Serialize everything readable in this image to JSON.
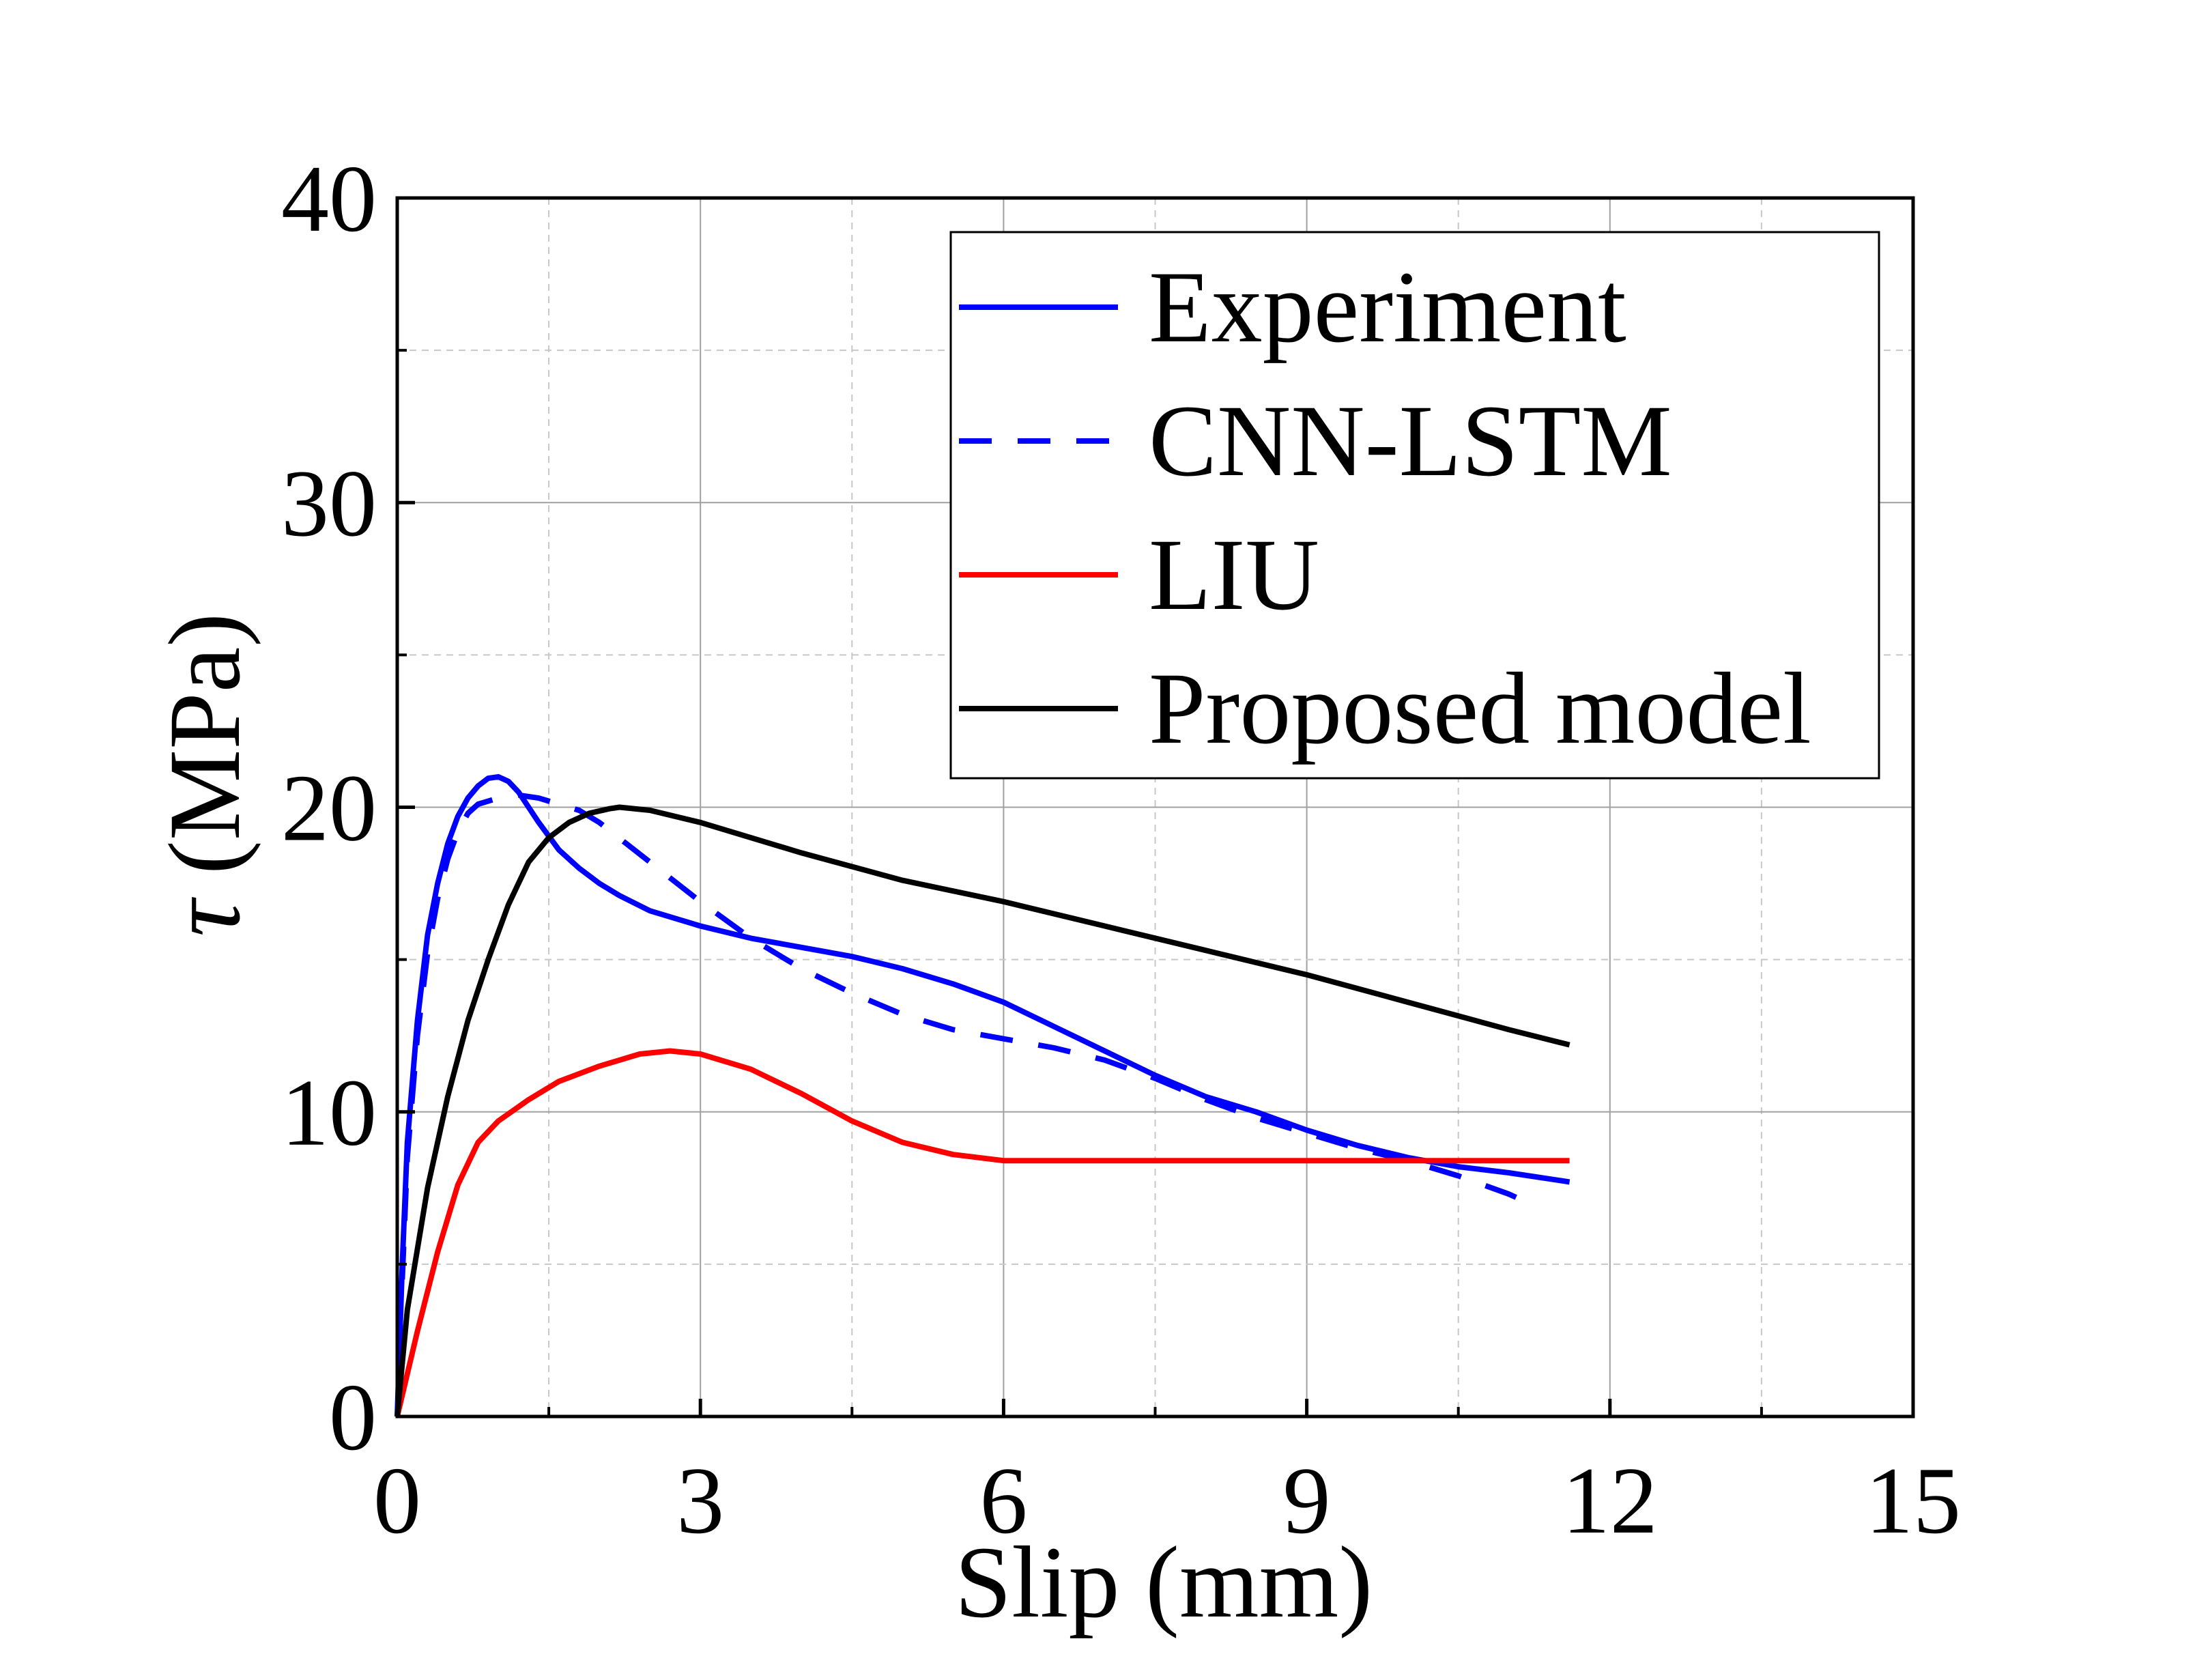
{
  "chart_data": {
    "type": "line",
    "xlabel": "Slip (mm)",
    "ylabel_symbol": "τ",
    "ylabel_unit": " (MPa)",
    "xlim": [
      0,
      15
    ],
    "ylim": [
      0,
      40
    ],
    "xticks": [
      0,
      3,
      6,
      9,
      12,
      15
    ],
    "yticks": [
      0,
      10,
      20,
      30,
      40
    ],
    "xminor": [
      1.5,
      4.5,
      7.5,
      10.5,
      13.5
    ],
    "yminor": [
      5,
      15,
      25,
      35
    ],
    "grid": true,
    "legend_position": "top-right",
    "series": [
      {
        "name": "Experiment",
        "color": "#0000ff",
        "dash": "solid",
        "points": [
          [
            0,
            0
          ],
          [
            0.05,
            5.0
          ],
          [
            0.1,
            9.0
          ],
          [
            0.2,
            13.0
          ],
          [
            0.3,
            15.8
          ],
          [
            0.4,
            17.5
          ],
          [
            0.5,
            18.8
          ],
          [
            0.6,
            19.7
          ],
          [
            0.7,
            20.3
          ],
          [
            0.8,
            20.7
          ],
          [
            0.9,
            20.95
          ],
          [
            1.0,
            21.0
          ],
          [
            1.1,
            20.85
          ],
          [
            1.2,
            20.5
          ],
          [
            1.4,
            19.5
          ],
          [
            1.6,
            18.6
          ],
          [
            1.8,
            18.0
          ],
          [
            2.0,
            17.5
          ],
          [
            2.2,
            17.1
          ],
          [
            2.5,
            16.6
          ],
          [
            2.8,
            16.3
          ],
          [
            3.0,
            16.1
          ],
          [
            3.5,
            15.7
          ],
          [
            4.0,
            15.4
          ],
          [
            4.5,
            15.1
          ],
          [
            5.0,
            14.7
          ],
          [
            5.5,
            14.2
          ],
          [
            6.0,
            13.6
          ],
          [
            6.5,
            12.8
          ],
          [
            7.0,
            12.0
          ],
          [
            7.5,
            11.2
          ],
          [
            8.0,
            10.5
          ],
          [
            8.5,
            10.0
          ],
          [
            9.0,
            9.4
          ],
          [
            9.5,
            8.9
          ],
          [
            10.0,
            8.5
          ],
          [
            10.5,
            8.2
          ],
          [
            11.0,
            8.0
          ],
          [
            11.6,
            7.7
          ]
        ]
      },
      {
        "name": "CNN-LSTM",
        "color": "#0000ff",
        "dash": "dashed",
        "points": [
          [
            0.05,
            4.5
          ],
          [
            0.1,
            8.5
          ],
          [
            0.2,
            12.5
          ],
          [
            0.3,
            15.2
          ],
          [
            0.4,
            17.0
          ],
          [
            0.5,
            18.3
          ],
          [
            0.6,
            19.2
          ],
          [
            0.7,
            19.8
          ],
          [
            0.8,
            20.1
          ],
          [
            1.0,
            20.3
          ],
          [
            1.2,
            20.4
          ],
          [
            1.4,
            20.3
          ],
          [
            1.6,
            20.1
          ],
          [
            1.8,
            19.9
          ],
          [
            2.0,
            19.5
          ],
          [
            2.5,
            18.2
          ],
          [
            3.0,
            16.9
          ],
          [
            3.5,
            15.7
          ],
          [
            4.0,
            14.7
          ],
          [
            4.5,
            13.9
          ],
          [
            5.0,
            13.2
          ],
          [
            5.5,
            12.7
          ],
          [
            6.0,
            12.4
          ],
          [
            6.5,
            12.1
          ],
          [
            7.0,
            11.7
          ],
          [
            7.5,
            11.1
          ],
          [
            8.0,
            10.4
          ],
          [
            8.5,
            9.8
          ],
          [
            9.0,
            9.3
          ],
          [
            9.5,
            8.8
          ],
          [
            10.0,
            8.4
          ],
          [
            10.5,
            7.9
          ],
          [
            11.0,
            7.3
          ],
          [
            11.2,
            7.0
          ]
        ]
      },
      {
        "name": "LIU",
        "color": "#ff0000",
        "dash": "solid",
        "points": [
          [
            0,
            0
          ],
          [
            0.2,
            2.8
          ],
          [
            0.4,
            5.4
          ],
          [
            0.6,
            7.6
          ],
          [
            0.8,
            9.0
          ],
          [
            1.0,
            9.7
          ],
          [
            1.3,
            10.4
          ],
          [
            1.6,
            11.0
          ],
          [
            2.0,
            11.5
          ],
          [
            2.4,
            11.9
          ],
          [
            2.7,
            12.0
          ],
          [
            3.0,
            11.9
          ],
          [
            3.5,
            11.4
          ],
          [
            4.0,
            10.6
          ],
          [
            4.5,
            9.7
          ],
          [
            5.0,
            9.0
          ],
          [
            5.5,
            8.6
          ],
          [
            6.0,
            8.4
          ],
          [
            7.0,
            8.4
          ],
          [
            8.0,
            8.4
          ],
          [
            9.0,
            8.4
          ],
          [
            10.0,
            8.4
          ],
          [
            11.0,
            8.4
          ],
          [
            11.6,
            8.4
          ]
        ]
      },
      {
        "name": "Proposed model",
        "color": "#000000",
        "dash": "solid",
        "points": [
          [
            0,
            0
          ],
          [
            0.1,
            3.5
          ],
          [
            0.3,
            7.5
          ],
          [
            0.5,
            10.5
          ],
          [
            0.7,
            13.0
          ],
          [
            0.9,
            15.0
          ],
          [
            1.1,
            16.8
          ],
          [
            1.3,
            18.2
          ],
          [
            1.5,
            19.0
          ],
          [
            1.7,
            19.5
          ],
          [
            1.9,
            19.8
          ],
          [
            2.1,
            19.95
          ],
          [
            2.2,
            20.0
          ],
          [
            2.5,
            19.9
          ],
          [
            3.0,
            19.5
          ],
          [
            4.0,
            18.5
          ],
          [
            5.0,
            17.6
          ],
          [
            6.0,
            16.9
          ],
          [
            7.0,
            16.1
          ],
          [
            8.0,
            15.3
          ],
          [
            9.0,
            14.5
          ],
          [
            10.0,
            13.6
          ],
          [
            11.0,
            12.7
          ],
          [
            11.6,
            12.2
          ]
        ]
      }
    ]
  }
}
